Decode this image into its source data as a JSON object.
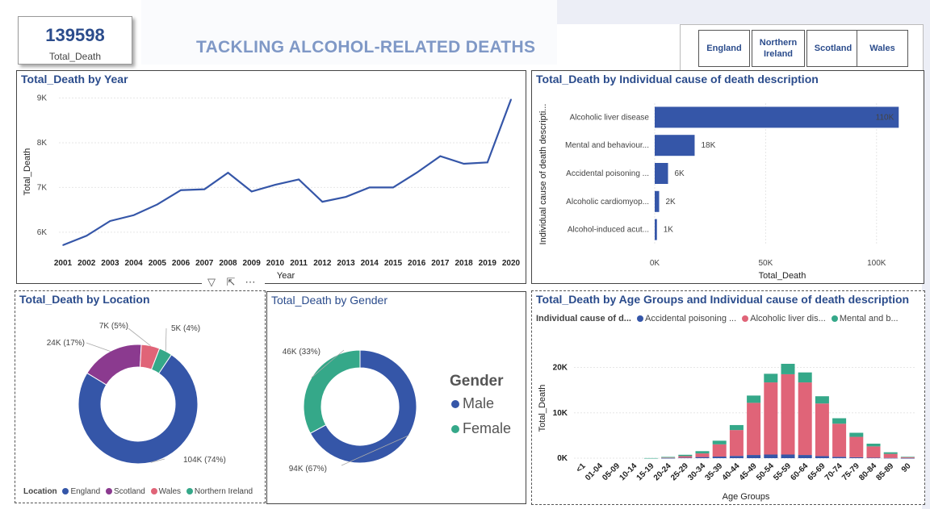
{
  "kpi": {
    "value": "139598",
    "label": "Total_Death"
  },
  "page_title": "TACKLING ALCOHOL-RELATED DEATHS",
  "slicer": {
    "options": [
      "England",
      "Northern Ireland",
      "Scotland",
      "Wales"
    ]
  },
  "colors": {
    "primary": "#3556a8",
    "pink": "#e06478",
    "purple": "#8b3a8f",
    "teal": "#35a889",
    "title": "#2b4c8c"
  },
  "toolbar": {
    "filter_icon": "filter-icon",
    "focus_icon": "focus-mode-icon",
    "more_icon": "more-options-icon"
  },
  "year_chart": {
    "title": "Total_Death by Year",
    "chart_data": {
      "type": "line",
      "x": [
        "2001",
        "2002",
        "2003",
        "2004",
        "2005",
        "2006",
        "2007",
        "2008",
        "2009",
        "2010",
        "2011",
        "2012",
        "2013",
        "2014",
        "2015",
        "2016",
        "2017",
        "2018",
        "2019",
        "2020"
      ],
      "series": [
        {
          "values": [
            5710,
            5920,
            6250,
            6380,
            6620,
            6940,
            6960,
            7330,
            6910,
            7060,
            7180,
            6680,
            6790,
            7000,
            7000,
            7330,
            7700,
            7530,
            7560,
            8970
          ]
        }
      ],
      "xlabel": "Year",
      "ylabel": "Total_Death",
      "yticks": [
        "6K",
        "7K",
        "8K",
        "9K"
      ],
      "ylim": [
        5600,
        9100
      ]
    }
  },
  "cause_chart": {
    "title": "Total_Death by Individual cause of death description",
    "chart_data": {
      "type": "bar",
      "categories": [
        "Alcoholic liver disease",
        "Mental and behaviour...",
        "Accidental poisoning ...",
        "Alcoholic cardiomyop...",
        "Alcohol-induced acut..."
      ],
      "values": [
        110000,
        18000,
        6000,
        2000,
        1000
      ],
      "data_labels": [
        "110K",
        "18K",
        "6K",
        "2K",
        "1K"
      ],
      "xlabel": "Total_Death",
      "ylabel": "Individual cause of death descripti...",
      "xticks": [
        "0K",
        "50K",
        "100K"
      ],
      "xlim": [
        0,
        115000
      ]
    }
  },
  "location_chart": {
    "title": "Total_Death by Location",
    "legend_title": "Location",
    "chart_data": {
      "type": "pie",
      "categories": [
        "England",
        "Scotland",
        "Wales",
        "Northern Ireland"
      ],
      "values": [
        104000,
        24000,
        7000,
        5000
      ],
      "data_labels": [
        "104K (74%)",
        "24K (17%)",
        "7K (5%)",
        "5K (4%)"
      ],
      "colors": [
        "#3556a8",
        "#8b3a8f",
        "#e06478",
        "#35a889"
      ]
    }
  },
  "gender_chart": {
    "title": "Total_Death by Gender",
    "legend_title": "Gender",
    "chart_data": {
      "type": "pie",
      "categories": [
        "Male",
        "Female"
      ],
      "values": [
        94000,
        46000
      ],
      "data_labels": [
        "94K (67%)",
        "46K (33%)"
      ],
      "colors": [
        "#3556a8",
        "#35a889"
      ]
    }
  },
  "age_chart": {
    "title": "Total_Death by Age Groups and Individual cause of death description",
    "legend_title": "Individual cause of d...",
    "legend_items": [
      "Accidental poisoning ...",
      "Alcoholic liver dis...",
      "Mental and b..."
    ],
    "chart_data": {
      "type": "bar",
      "stacked": true,
      "categories": [
        "<1",
        "01-04",
        "05-09",
        "10-14",
        "15-19",
        "20-24",
        "25-29",
        "30-34",
        "35-39",
        "40-44",
        "45-49",
        "50-54",
        "55-59",
        "60-64",
        "65-69",
        "70-74",
        "75-79",
        "80-84",
        "85-89",
        "90"
      ],
      "series": [
        {
          "name": "Accidental poisoning ...",
          "values": [
            0,
            0,
            0,
            0,
            0,
            30,
            100,
            250,
            350,
            500,
            700,
            800,
            800,
            700,
            450,
            300,
            200,
            100,
            50,
            20
          ]
        },
        {
          "name": "Alcoholic liver dis...",
          "values": [
            0,
            0,
            0,
            0,
            0,
            100,
            350,
            800,
            2700,
            5700,
            11500,
            15900,
            17700,
            16000,
            11600,
            7300,
            4500,
            2500,
            900,
            200
          ]
        },
        {
          "name": "Mental and b...",
          "values": [
            0,
            0,
            0,
            0,
            20,
            150,
            300,
            500,
            800,
            1100,
            1600,
            1900,
            2300,
            2200,
            1600,
            1200,
            900,
            600,
            350,
            100
          ]
        }
      ],
      "xlabel": "Age Groups",
      "ylabel": "Total_Death",
      "yticks": [
        "0K",
        "10K",
        "20K"
      ],
      "ylim": [
        0,
        24000
      ]
    }
  }
}
